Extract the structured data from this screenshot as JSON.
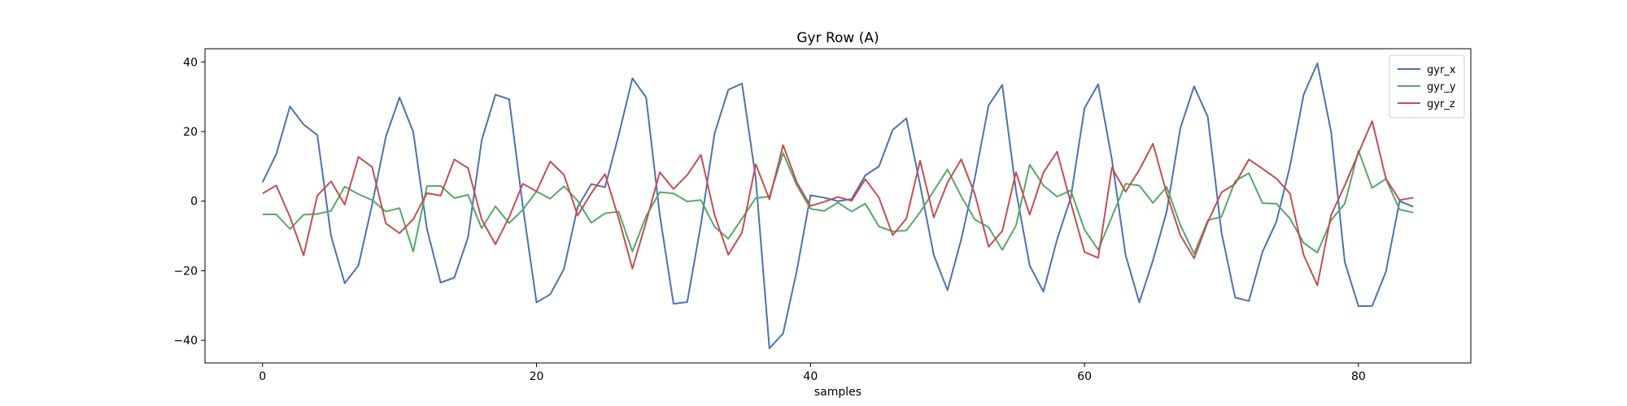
{
  "chart_data": {
    "type": "line",
    "title": "Gyr Row (A)",
    "xlabel": "samples",
    "ylabel": "",
    "xlim": [
      -4.2,
      88.2
    ],
    "ylim": [
      -46.5,
      43.8
    ],
    "xticks": [
      0,
      20,
      40,
      60,
      80
    ],
    "yticks": [
      -40,
      -20,
      0,
      20,
      40
    ],
    "grid": false,
    "legend_position": "top-right",
    "x": [
      0,
      1,
      2,
      3,
      4,
      5,
      6,
      7,
      8,
      9,
      10,
      11,
      12,
      13,
      14,
      15,
      16,
      17,
      18,
      19,
      20,
      21,
      22,
      23,
      24,
      25,
      26,
      27,
      28,
      29,
      30,
      31,
      32,
      33,
      34,
      35,
      36,
      37,
      38,
      39,
      40,
      41,
      42,
      43,
      44,
      45,
      46,
      47,
      48,
      49,
      50,
      51,
      52,
      53,
      54,
      55,
      56,
      57,
      58,
      59,
      60,
      61,
      62,
      63,
      64,
      65,
      66,
      67,
      68,
      69,
      70,
      71,
      72,
      73,
      74,
      75,
      76,
      77,
      78,
      79,
      80,
      81,
      82,
      83,
      84
    ],
    "series": [
      {
        "name": "gyr_x",
        "color": "#4c72b0",
        "values": [
          5.4,
          13.5,
          27.2,
          22.0,
          19.0,
          -10.0,
          -23.6,
          -18.5,
          -1.0,
          18.5,
          29.8,
          19.9,
          -8.0,
          -23.4,
          -22.0,
          -10.4,
          17.5,
          30.6,
          29.3,
          -1.5,
          -29.1,
          -26.8,
          -19.5,
          -1.7,
          4.9,
          4.0,
          19.0,
          35.3,
          29.8,
          -4.0,
          -29.5,
          -29.0,
          -6.7,
          19.5,
          32.0,
          33.8,
          6.7,
          -42.3,
          -38.0,
          -20.0,
          1.7,
          1.0,
          0.0,
          0.6,
          7.4,
          10.0,
          20.5,
          23.8,
          4.7,
          -15.5,
          -25.6,
          -11.0,
          6.7,
          27.5,
          33.4,
          3.0,
          -18.5,
          -26.0,
          -11.0,
          1.0,
          26.7,
          33.6,
          12.0,
          -15.5,
          -29.1,
          -17.0,
          -3.0,
          21.0,
          33.0,
          24.2,
          -9.0,
          -27.7,
          -28.7,
          -14.5,
          -6.0,
          10.0,
          30.6,
          39.6,
          20.0,
          -17.5,
          -30.2,
          -30.1,
          -20.3,
          0.0,
          -1.6
        ]
      },
      {
        "name": "gyr_y",
        "color": "#55a868",
        "values": [
          -3.8,
          -3.8,
          -8.0,
          -3.9,
          -3.7,
          -2.8,
          4.2,
          2.0,
          0.3,
          -3.0,
          -2.0,
          -14.5,
          4.3,
          4.4,
          0.9,
          1.8,
          -7.8,
          -1.5,
          -6.3,
          -2.5,
          2.8,
          0.7,
          4.3,
          0.1,
          -6.2,
          -3.5,
          -3.0,
          -14.5,
          -4.3,
          2.6,
          2.2,
          -0.1,
          0.3,
          -7.4,
          -10.8,
          -5.0,
          0.9,
          1.3,
          13.8,
          4.5,
          -2.2,
          -2.8,
          -0.4,
          -3.0,
          -0.7,
          -7.3,
          -8.7,
          -8.4,
          -3.2,
          3.0,
          9.1,
          1.4,
          -5.3,
          -7.5,
          -14.0,
          -7.0,
          10.5,
          4.5,
          1.3,
          3.1,
          -8.2,
          -14.0,
          -4.5,
          5.0,
          4.5,
          -0.5,
          4.1,
          -6.9,
          -15.1,
          -5.5,
          -4.5,
          5.8,
          8.0,
          -0.6,
          -0.7,
          -5.0,
          -12.0,
          -14.8,
          -5.5,
          -0.7,
          14.5,
          3.8,
          6.4,
          -2.4,
          -3.3
        ]
      },
      {
        "name": "gyr_z",
        "color": "#c44e52",
        "values": [
          2.2,
          4.5,
          -4.5,
          -15.6,
          1.6,
          5.7,
          -1.0,
          12.7,
          9.8,
          -6.4,
          -9.2,
          -5.2,
          2.3,
          1.6,
          12.0,
          9.5,
          -5.3,
          -12.4,
          -4.6,
          5.0,
          2.8,
          11.4,
          7.6,
          -4.1,
          2.3,
          7.8,
          -5.0,
          -19.4,
          -6.0,
          8.3,
          3.5,
          7.5,
          13.3,
          -4.0,
          -15.4,
          -9.0,
          10.6,
          0.5,
          16.1,
          5.4,
          -1.4,
          -0.2,
          1.2,
          0.1,
          6.3,
          1.0,
          -9.8,
          -5.0,
          11.6,
          -4.7,
          5.3,
          12.0,
          2.0,
          -13.1,
          -8.6,
          8.3,
          -3.9,
          8.2,
          14.2,
          -0.5,
          -14.6,
          -16.3,
          9.6,
          2.7,
          9.0,
          16.5,
          2.2,
          -9.8,
          -16.4,
          -6.0,
          2.5,
          5.0,
          12.0,
          9.3,
          6.5,
          2.2,
          -15.5,
          -24.2,
          -4.0,
          4.5,
          13.8,
          23.0,
          6.5,
          0.3,
          1.0
        ]
      }
    ]
  }
}
